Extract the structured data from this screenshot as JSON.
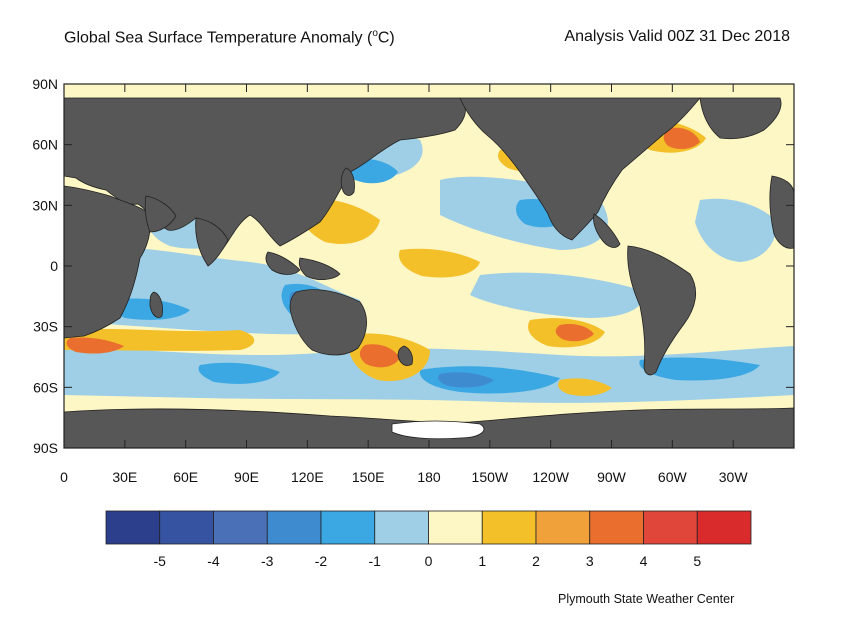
{
  "title": {
    "main": "Global Sea Surface Temperature Anomaly (",
    "unit_sup": "o",
    "unit_tail": "C)",
    "valid": "Analysis Valid 00Z 31 Dec 2018"
  },
  "axes": {
    "y_labels": [
      "90N",
      "60N",
      "30N",
      "0",
      "30S",
      "60S",
      "90S"
    ],
    "x_labels": [
      "0",
      "30E",
      "60E",
      "90E",
      "120E",
      "150E",
      "180",
      "150W",
      "120W",
      "90W",
      "60W",
      "30W"
    ]
  },
  "colorbar": {
    "labels": [
      "-5",
      "-4",
      "-3",
      "-2",
      "-1",
      "0",
      "1",
      "2",
      "3",
      "4",
      "5"
    ],
    "colors": [
      "#2b3f8c",
      "#3553a1",
      "#4a70b8",
      "#3f8bd0",
      "#3ba8e3",
      "#9ecfe6",
      "#fdf6c5",
      "#f3c02a",
      "#f0a13a",
      "#ea6f2e",
      "#e0463a",
      "#d92b2b"
    ]
  },
  "palette": {
    "land": "#575757",
    "ice": "#ffffff",
    "zero_band": "#fdf6c5"
  },
  "credit": "Plymouth State Weather Center"
}
